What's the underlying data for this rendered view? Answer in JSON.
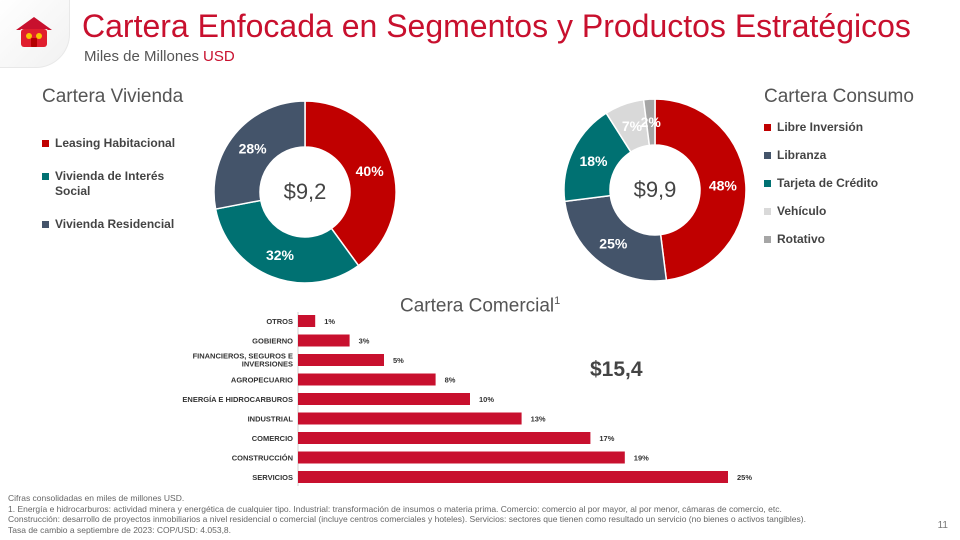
{
  "header": {
    "title": "Cartera Enfocada en Segmentos y Productos Estratégicos",
    "subtitle_prefix": "Miles de Millones",
    "subtitle_unit": "USD",
    "logo_icon": "house-logo-icon"
  },
  "colors": {
    "red": "#c00000",
    "navy": "#44546a",
    "teal": "#007172",
    "light_gray": "#d9d9d9",
    "gray": "#a6a6a6",
    "bar_red": "#c8102e"
  },
  "chart_data": [
    {
      "type": "pie",
      "title": "Cartera Vivienda",
      "total_label": "$9,2",
      "slices": [
        {
          "name": "Leasing Habitacional",
          "value": 40,
          "label": "40%",
          "color": "#c00000"
        },
        {
          "name": "Vivienda de Interés Social",
          "value": 32,
          "label": "32%",
          "color": "#007172"
        },
        {
          "name": "Vivienda Residencial",
          "value": 28,
          "label": "28%",
          "color": "#44546a"
        }
      ],
      "legend_order": [
        "Leasing Habitacional",
        "Vivienda de Interés Social",
        "Vivienda Residencial"
      ],
      "legend_position": "left"
    },
    {
      "type": "pie",
      "title": "Cartera Consumo",
      "total_label": "$9,9",
      "slices": [
        {
          "name": "Libre Inversión",
          "value": 48,
          "label": "48%",
          "color": "#c00000"
        },
        {
          "name": "Libranza",
          "value": 25,
          "label": "25%",
          "color": "#44546a"
        },
        {
          "name": "Tarjeta de Crédito",
          "value": 18,
          "label": "18%",
          "color": "#007172"
        },
        {
          "name": "Vehículo",
          "value": 7,
          "label": "7%",
          "color": "#d9d9d9"
        },
        {
          "name": "Rotativo",
          "value": 2,
          "label": "2%",
          "color": "#a6a6a6"
        }
      ],
      "legend_order": [
        "Libre Inversión",
        "Libranza",
        "Tarjeta de Crédito",
        "Vehículo",
        "Rotativo"
      ],
      "legend_position": "right"
    },
    {
      "type": "bar",
      "orientation": "horizontal",
      "title": "Cartera Comercial",
      "title_superscript": "1",
      "total_label": "$15,4",
      "categories": [
        "OTROS",
        "GOBIERNO",
        "FINANCIEROS, SEGUROS E INVERSIONES",
        "AGROPECUARIO",
        "ENERGÍA E HIDROCARBUROS",
        "INDUSTRIAL",
        "COMERCIO",
        "CONSTRUCCIÓN",
        "SERVICIOS"
      ],
      "values": [
        1,
        3,
        5,
        8,
        10,
        13,
        17,
        19,
        25
      ],
      "labels": [
        "1%",
        "3%",
        "5%",
        "8%",
        "10%",
        "13%",
        "17%",
        "19%",
        "25%"
      ],
      "xlim": [
        0,
        25
      ],
      "color": "#c8102e",
      "grid": false
    }
  ],
  "footnotes": [
    "Cifras consolidadas en miles de millones USD.",
    "1. Energía e hidrocarburos: actividad minera y energética de cualquier tipo. Industrial: transformación de insumos o materia prima. Comercio: comercio al por mayor, al por menor, cámaras de comercio, etc.",
    "Construcción: desarrollo de proyectos inmobiliarios a nivel residencial o comercial (incluye centros comerciales y hoteles). Servicios: sectores que tienen como resultado un servicio (no bienes o activos tangibles).",
    "Tasa de cambio a septiembre de 2023: COP/USD: 4.053,8."
  ],
  "page_number": "11"
}
